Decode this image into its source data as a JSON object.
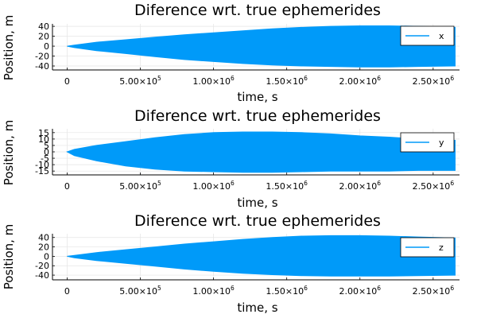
{
  "chart_data": [
    {
      "type": "area",
      "title": "Diference wrt. true ephemerides",
      "xlabel": "time, s",
      "ylabel": "Position, m",
      "xlim": [
        -100000,
        2680000
      ],
      "ylim": [
        -48,
        45
      ],
      "xticks": [
        0,
        500000,
        1000000,
        1500000,
        2000000,
        2500000
      ],
      "xtick_labels": [
        {
          "mant": "0",
          "exp": ""
        },
        {
          "mant": "5.00×10",
          "exp": "5"
        },
        {
          "mant": "1.00×10",
          "exp": "6"
        },
        {
          "mant": "1.50×10",
          "exp": "6"
        },
        {
          "mant": "2.00×10",
          "exp": "6"
        },
        {
          "mant": "2.50×10",
          "exp": "6"
        }
      ],
      "yticks": [
        -40,
        -20,
        0,
        20,
        40
      ],
      "ytick_labels": [
        "-40",
        "-20",
        "0",
        "20",
        "40"
      ],
      "grid": true,
      "legend_position": "top-right",
      "series": [
        {
          "name": "x",
          "color": "#009af9",
          "x": [
            0,
            50000,
            200000,
            400000,
            600000,
            800000,
            1000000,
            1200000,
            1400000,
            1600000,
            1800000,
            2000000,
            2200000,
            2400000,
            2650000
          ],
          "upper": [
            0,
            2,
            8,
            13,
            18,
            23,
            27,
            31,
            35,
            38,
            40,
            41,
            41,
            40,
            38
          ],
          "lower": [
            0,
            -3,
            -9,
            -15,
            -21,
            -27,
            -31,
            -35,
            -38,
            -40,
            -41,
            -42,
            -42,
            -41,
            -40
          ]
        }
      ]
    },
    {
      "type": "area",
      "title": "Diference wrt. true ephemerides",
      "xlabel": "time, s",
      "ylabel": "Position, m",
      "xlim": [
        -100000,
        2680000
      ],
      "ylim": [
        -18,
        18
      ],
      "xticks": [
        0,
        500000,
        1000000,
        1500000,
        2000000,
        2500000
      ],
      "xtick_labels": [
        {
          "mant": "0",
          "exp": ""
        },
        {
          "mant": "5.00×10",
          "exp": "5"
        },
        {
          "mant": "1.00×10",
          "exp": "6"
        },
        {
          "mant": "1.50×10",
          "exp": "6"
        },
        {
          "mant": "2.00×10",
          "exp": "6"
        },
        {
          "mant": "2.50×10",
          "exp": "6"
        }
      ],
      "yticks": [
        -15,
        -10,
        -5,
        0,
        5,
        10,
        15
      ],
      "ytick_labels": [
        "-15",
        "-10",
        "-5",
        "0",
        "5",
        "10",
        "15"
      ],
      "grid": true,
      "legend_position": "top-right",
      "series": [
        {
          "name": "y",
          "color": "#009af9",
          "x": [
            0,
            50000,
            200000,
            400000,
            600000,
            800000,
            1000000,
            1200000,
            1400000,
            1600000,
            1800000,
            2000000,
            2200000,
            2400000,
            2650000
          ],
          "upper": [
            0,
            2,
            5,
            8,
            11,
            13.5,
            15,
            15.5,
            15.5,
            15,
            14,
            12.5,
            11.5,
            10,
            9
          ],
          "lower": [
            0,
            -3,
            -7,
            -11,
            -13.5,
            -15,
            -15.5,
            -16,
            -16,
            -15.5,
            -15,
            -15,
            -15,
            -14.5,
            -14.5
          ]
        }
      ]
    },
    {
      "type": "area",
      "title": "Diference wrt. true ephemerides",
      "xlabel": "time, s",
      "ylabel": "Position, m",
      "xlim": [
        -100000,
        2680000
      ],
      "ylim": [
        -50,
        48
      ],
      "xticks": [
        0,
        500000,
        1000000,
        1500000,
        2000000,
        2500000
      ],
      "xtick_labels": [
        {
          "mant": "0",
          "exp": ""
        },
        {
          "mant": "5.00×10",
          "exp": "5"
        },
        {
          "mant": "1.00×10",
          "exp": "6"
        },
        {
          "mant": "1.50×10",
          "exp": "6"
        },
        {
          "mant": "2.00×10",
          "exp": "6"
        },
        {
          "mant": "2.50×10",
          "exp": "6"
        }
      ],
      "yticks": [
        -40,
        -20,
        0,
        20,
        40
      ],
      "ytick_labels": [
        "-40",
        "-20",
        "0",
        "20",
        "40"
      ],
      "grid": true,
      "legend_position": "top-right",
      "series": [
        {
          "name": "z",
          "color": "#009af9",
          "x": [
            0,
            50000,
            200000,
            400000,
            600000,
            800000,
            1000000,
            1200000,
            1400000,
            1600000,
            1800000,
            2000000,
            2200000,
            2400000,
            2650000
          ],
          "upper": [
            0,
            2,
            8,
            14,
            20,
            26,
            31,
            36,
            40,
            43,
            44,
            44,
            43,
            41,
            39
          ],
          "lower": [
            0,
            -3,
            -9,
            -15,
            -21,
            -27,
            -32,
            -36,
            -39,
            -41,
            -42,
            -42,
            -42,
            -41,
            -40
          ]
        }
      ]
    }
  ]
}
